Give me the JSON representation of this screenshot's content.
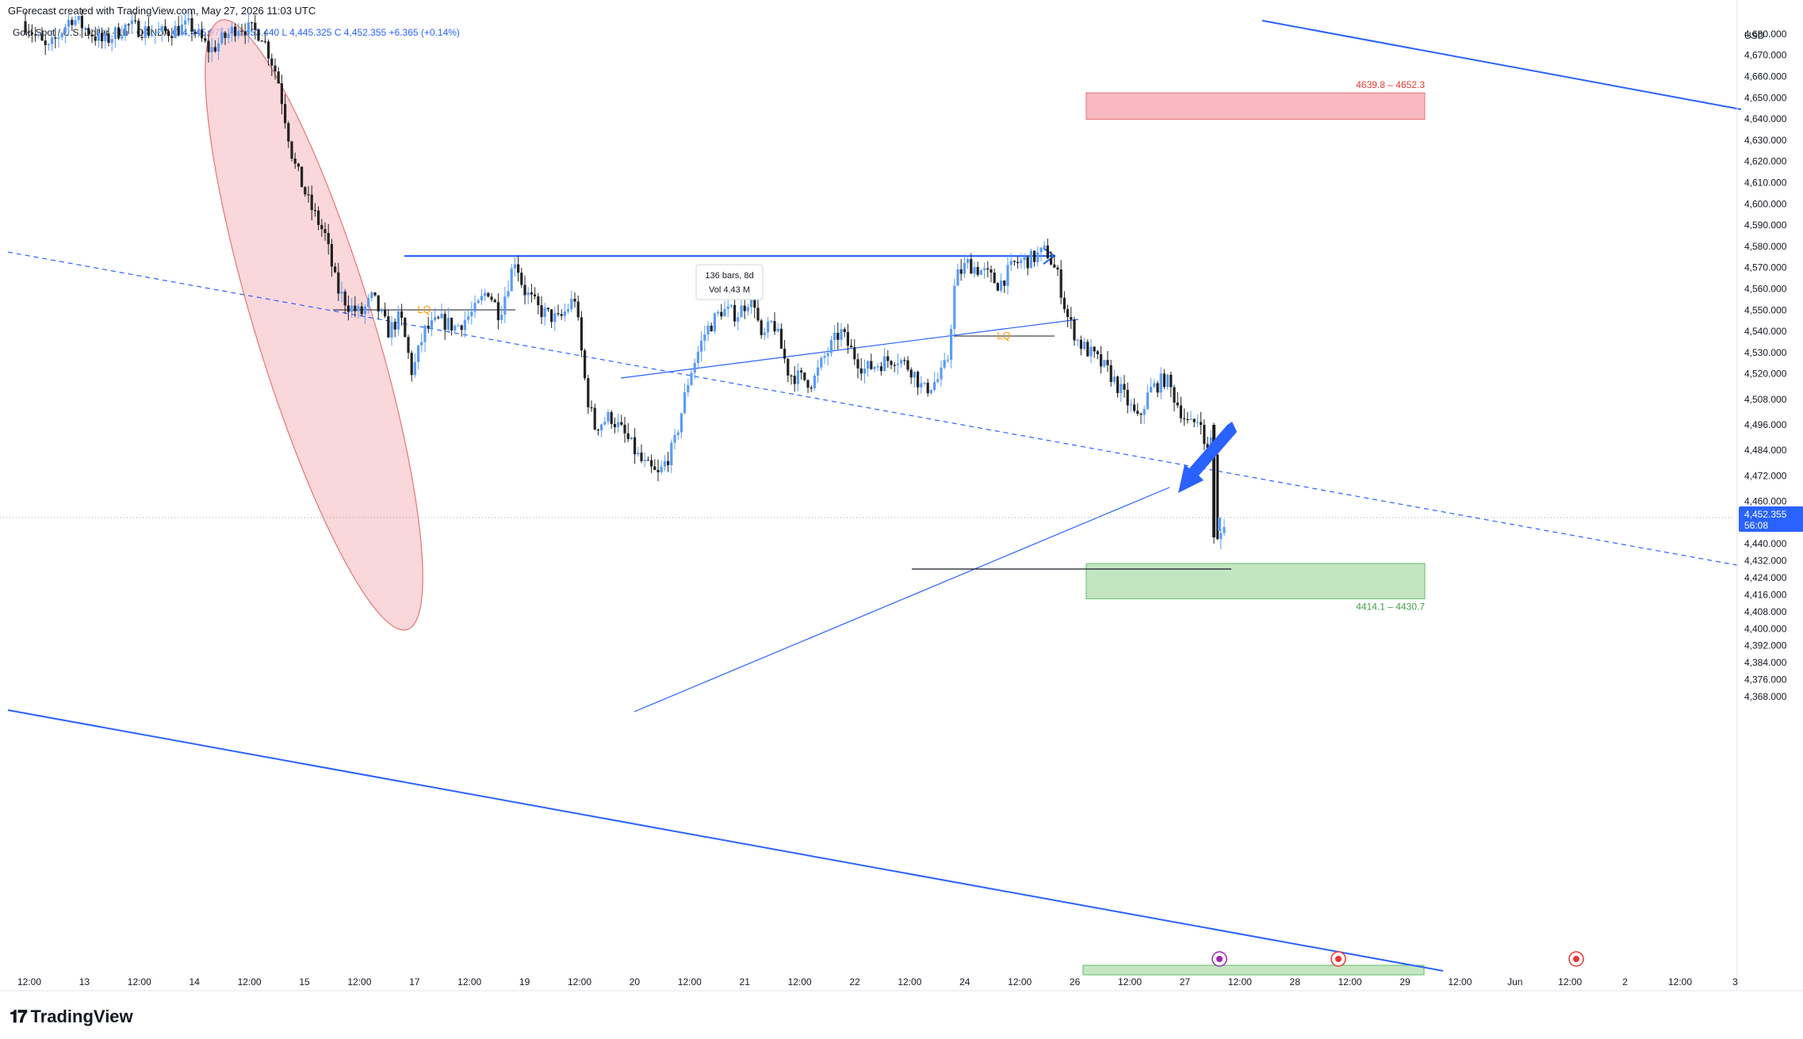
{
  "header": {
    "credit": "GForecast created with TradingView.com, May 27, 2026 11:03 UTC",
    "symbol": "Gold Spot / U.S. Dollar · 1h · OANDA",
    "ohlc": "O 4,445.975  H 4,453.440  L 4,445.325  C 4,452.355  +6.365 (+0.14%)"
  },
  "currency": "USD",
  "price_label": {
    "price": "4,452.355",
    "countdown": "56:08"
  },
  "footer": {
    "logo_text": "TradingView"
  },
  "colors": {
    "up": "#5b9cf6",
    "down": "#222222",
    "trend": "#2962ff",
    "zone_red": "#f7b9bf",
    "zone_red_border": "#e57373",
    "zone_green": "#c3e6c1",
    "zone_green_border": "#66bb6a",
    "ellipse": "#f8c9cd",
    "lq": "#ff9800"
  },
  "chart_data": {
    "type": "candlestick",
    "timeframe": "1h",
    "y_range": [
      4362,
      4690
    ],
    "y_ticks": [
      "4,680.000",
      "4,670.000",
      "4,660.000",
      "4,650.000",
      "4,640.000",
      "4,630.000",
      "4,620.000",
      "4,610.000",
      "4,600.000",
      "4,590.000",
      "4,580.000",
      "4,570.000",
      "4,560.000",
      "4,550.000",
      "4,540.000",
      "4,530.000",
      "4,520.000",
      "4,508.000",
      "4,496.000",
      "4,484.000",
      "4,472.000",
      "4,460.000",
      "4,440.000",
      "4,432.000",
      "4,424.000",
      "4,416.000",
      "4,408.000",
      "4,400.000",
      "4,392.000",
      "4,384.000",
      "4,376.000",
      "4,368.000"
    ],
    "y_tick_values": [
      4680,
      4670,
      4660,
      4650,
      4640,
      4630,
      4620,
      4610,
      4600,
      4590,
      4580,
      4570,
      4560,
      4550,
      4540,
      4530,
      4520,
      4508,
      4496,
      4484,
      4472,
      4460,
      4440,
      4432,
      4424,
      4416,
      4408,
      4400,
      4392,
      4384,
      4376,
      4368
    ],
    "x_ticks": [
      "12:00",
      "13",
      "12:00",
      "14",
      "12:00",
      "15",
      "12:00",
      "17",
      "12:00",
      "19",
      "12:00",
      "20",
      "12:00",
      "21",
      "12:00",
      "22",
      "12:00",
      "24",
      "12:00",
      "26",
      "12:00",
      "27",
      "12:00",
      "28",
      "12:00",
      "29",
      "12:00",
      "Jun",
      "12:00",
      "2",
      "12:00",
      "3"
    ],
    "zones": [
      {
        "label": "4639.8 – 4652.3",
        "low": 4639.8,
        "high": 4652.3
      },
      {
        "label": "4414.1 – 4430.7",
        "low": 4414.1,
        "high": 4430.7
      }
    ],
    "annotations": {
      "lq_labels": [
        "LQ",
        "LQ"
      ],
      "measure_bars": "136 bars, 8d",
      "measure_vol": "Vol 4.43 M"
    },
    "current_price": 4452.355
  }
}
